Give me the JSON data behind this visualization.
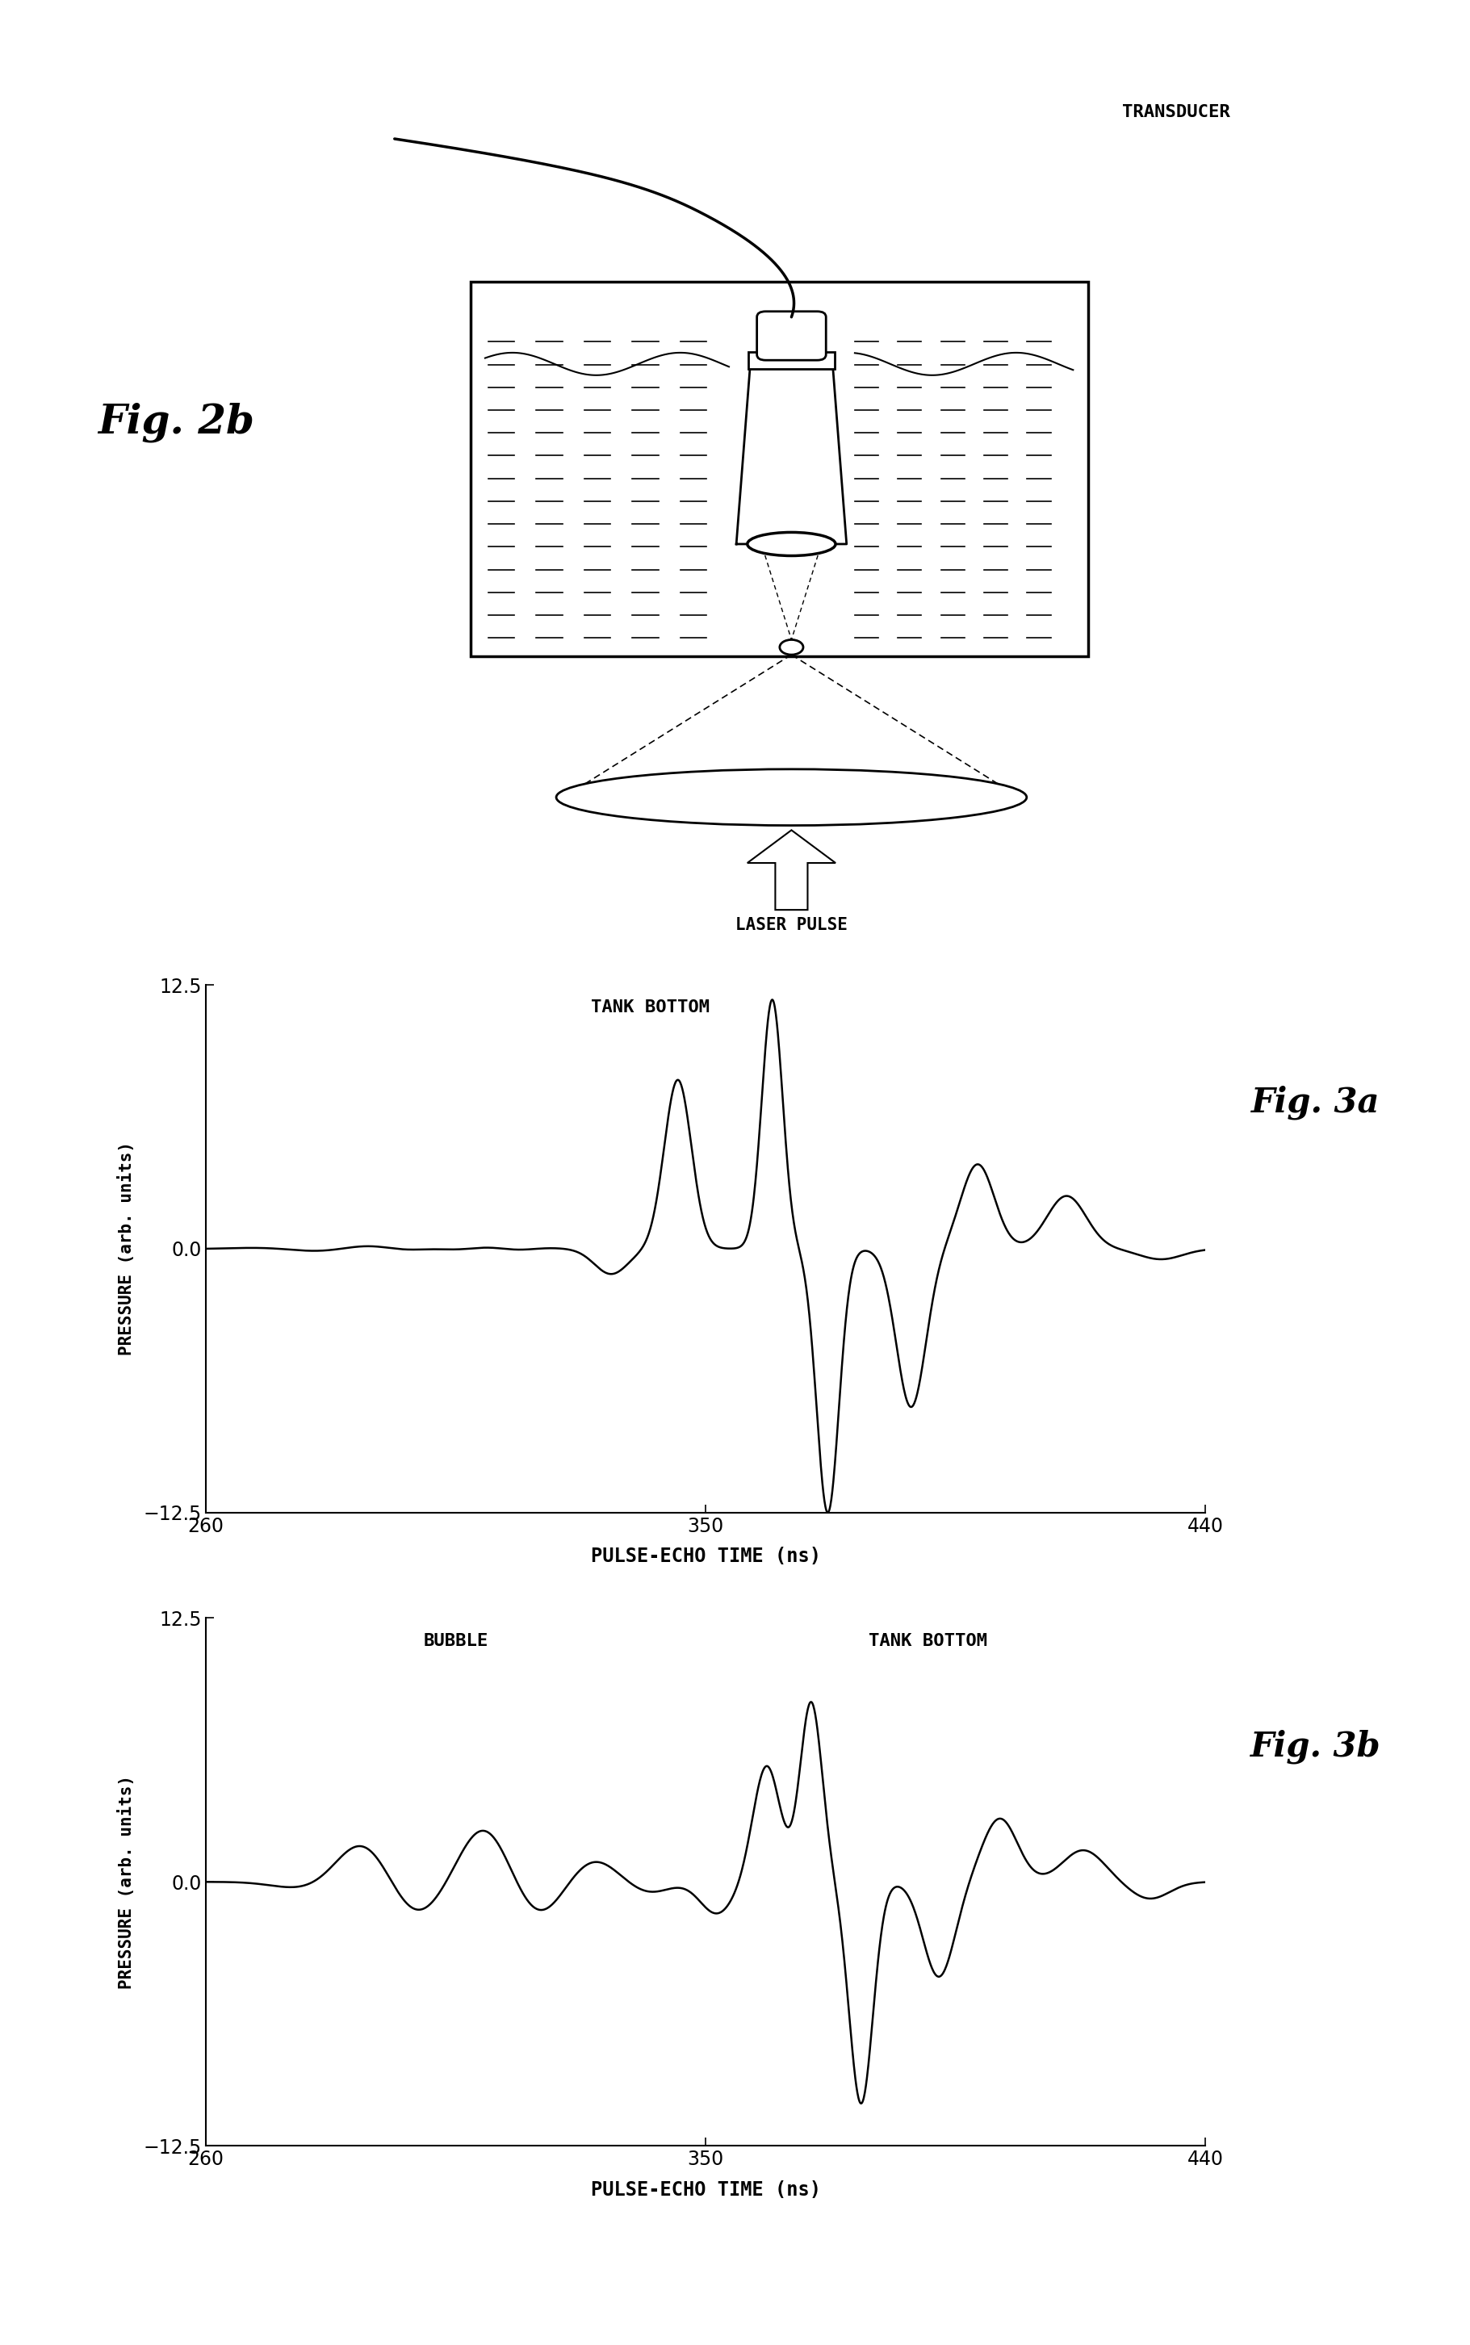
{
  "fig_width": 18.21,
  "fig_height": 29.05,
  "background_color": "#ffffff",
  "diagram": {
    "transducer_label": "TRANSDUCER",
    "laser_label": "LASER PULSE",
    "fig2b_label": "Fig. 2b"
  },
  "plot3a": {
    "fig_label": "Fig. 3a",
    "title": "TANK BOTTOM",
    "xlabel": "PULSE-ECHO TIME (ns)",
    "ylabel": "PRESSURE (arb. units)",
    "xlim": [
      260,
      440
    ],
    "ylim": [
      -12.5,
      12.5
    ],
    "xticks": [
      260,
      350,
      440
    ],
    "yticks": [
      -12.5,
      0,
      12.5
    ]
  },
  "plot3b": {
    "fig_label": "Fig. 3b",
    "title": "TANK BOTTOM",
    "bubble_label": "BUBBLE",
    "xlabel": "PULSE-ECHO TIME (ns)",
    "ylabel": "PRESSURE (arb. units)",
    "xlim": [
      260,
      440
    ],
    "ylim": [
      -12.5,
      12.5
    ],
    "xticks": [
      260,
      350,
      440
    ],
    "yticks": [
      -12.5,
      0,
      12.5
    ]
  }
}
